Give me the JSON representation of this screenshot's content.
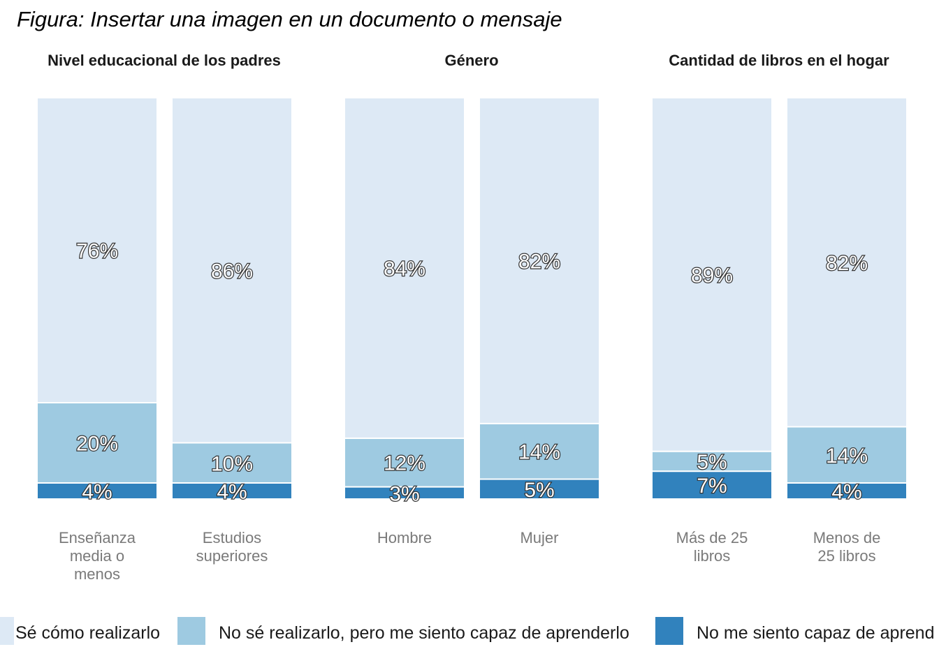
{
  "title": "Figura: Insertar una imagen en un documento o mensaje",
  "colors": {
    "Sé cómo realizarlo": "#dde9f5",
    "No sé realizarlo, pero me siento capaz de aprenderlo": "#9ecae1",
    "No me siento capaz de aprenderlo": "#3182bd",
    "category_label": "#7a7a7a",
    "value_label_fill": "#ffffff",
    "value_label_stroke": "#333333"
  },
  "chart_data": {
    "type": "bar",
    "stacked": true,
    "percent": true,
    "ylim": [
      0,
      100
    ],
    "grid": false,
    "legend_position": "bottom",
    "legend": [
      "Sé cómo realizarlo",
      "No sé realizarlo, pero me siento capaz de aprenderlo",
      "No me siento capaz de aprend"
    ],
    "panels": [
      {
        "title": "Nivel educacional de los padres",
        "categories": [
          "Enseñanza media o menos",
          "Estudios superiores"
        ],
        "category_lines": [
          [
            "Enseñanza",
            "media o",
            "menos"
          ],
          [
            "Estudios",
            "superiores"
          ]
        ],
        "series": [
          {
            "name": "No me siento capaz de aprenderlo",
            "values": [
              4,
              4
            ],
            "labels": [
              "4%",
              "4%"
            ]
          },
          {
            "name": "No sé realizarlo, pero me siento capaz de aprenderlo",
            "values": [
              20,
              10
            ],
            "labels": [
              "20%",
              "10%"
            ]
          },
          {
            "name": "Sé cómo realizarlo",
            "values": [
              76,
              86
            ],
            "labels": [
              "76%",
              "86%"
            ]
          }
        ]
      },
      {
        "title": "Género",
        "categories": [
          "Hombre",
          "Mujer"
        ],
        "category_lines": [
          [
            "Hombre"
          ],
          [
            "Mujer"
          ]
        ],
        "series": [
          {
            "name": "No me siento capaz de aprenderlo",
            "values": [
              3,
              5
            ],
            "labels": [
              "3%",
              "5%"
            ]
          },
          {
            "name": "No sé realizarlo, pero me siento capaz de aprenderlo",
            "values": [
              12,
              14
            ],
            "labels": [
              "12%",
              "14%"
            ]
          },
          {
            "name": "Sé cómo realizarlo",
            "values": [
              84,
              82
            ],
            "labels": [
              "84%",
              "82%"
            ]
          }
        ]
      },
      {
        "title": "Cantidad de libros en el hogar",
        "categories": [
          "Más de 25 libros",
          "Menos de 25 libros"
        ],
        "category_lines": [
          [
            "Más de 25",
            "libros"
          ],
          [
            "Menos de",
            "25 libros"
          ]
        ],
        "series": [
          {
            "name": "No me siento capaz de aprenderlo",
            "values": [
              7,
              4
            ],
            "labels": [
              "7%",
              "4%"
            ]
          },
          {
            "name": "No sé realizarlo, pero me siento capaz de aprenderlo",
            "values": [
              5,
              14
            ],
            "labels": [
              "5%",
              "14%"
            ]
          },
          {
            "name": "Sé cómo realizarlo",
            "values": [
              89,
              82
            ],
            "labels": [
              "89%",
              "82%"
            ]
          }
        ]
      }
    ]
  }
}
